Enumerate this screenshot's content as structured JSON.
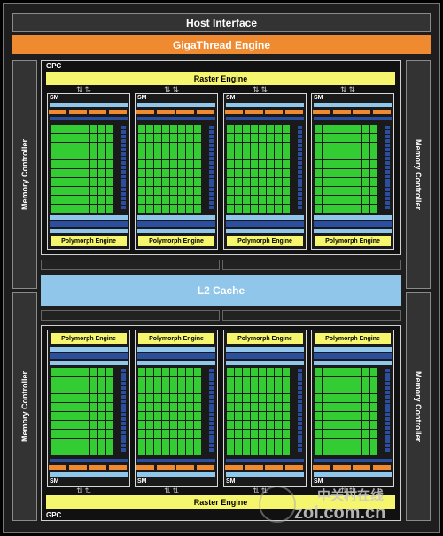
{
  "header": {
    "host_interface": "Host Interface",
    "gigathread_engine": "GigaThread Engine"
  },
  "memory_controller_label": "Memory Controller",
  "gpc_label": "GPC",
  "raster_engine_label": "Raster Engine",
  "sm_label": "SM",
  "polymorph_engine_label": "Polymorph Engine",
  "l2_cache_label": "L2 Cache",
  "watermark": {
    "line1": "中关村在线",
    "line2": "zol.com.cn"
  },
  "colors": {
    "orange": "#f08a30",
    "yellow": "#f5f56e",
    "light_blue": "#8fc6ea",
    "dark_blue": "#2b4f9e",
    "green": "#33cc33"
  }
}
